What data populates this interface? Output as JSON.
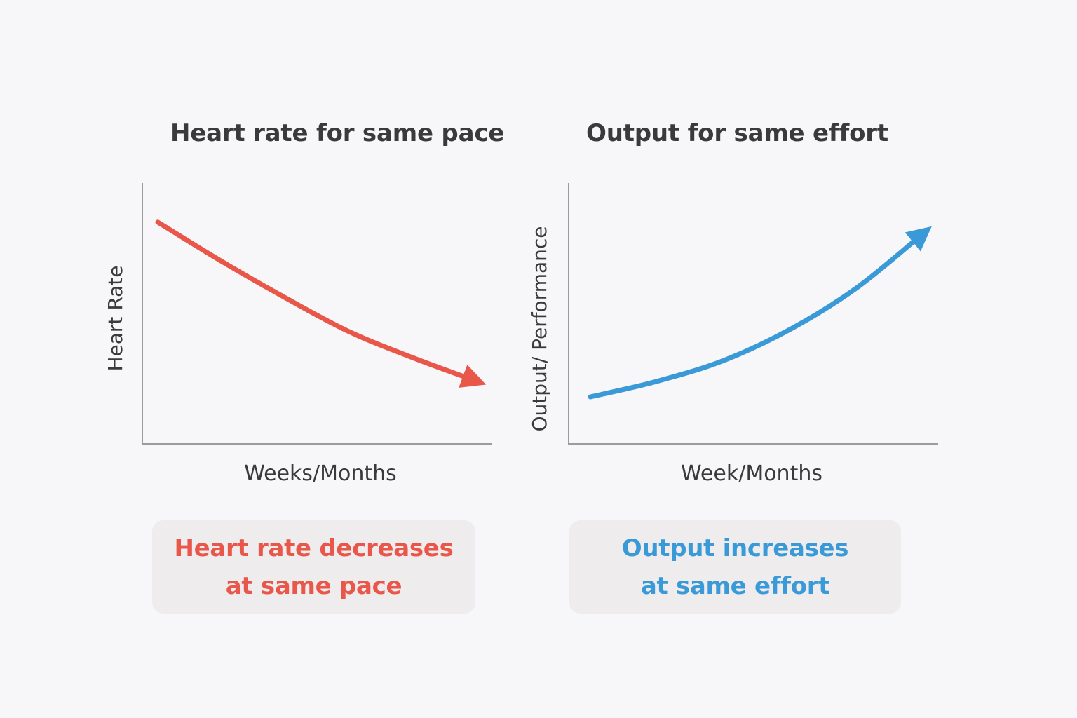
{
  "colors": {
    "background": "#f7f6f8",
    "decrease": "#e8574a",
    "increase": "#3a9ad8",
    "axis": "#9c9c9e",
    "text": "#3a3a3c",
    "callout_bg": "#efecee"
  },
  "chart_data": [
    {
      "type": "line",
      "title": "Heart rate for same pace",
      "xlabel": "Weeks/Months",
      "ylabel": "Heart Rate",
      "ticks": "none",
      "grid": false,
      "trend": "decreasing",
      "arrow_at_end": true,
      "series": [
        {
          "color": "#e8574a",
          "x": [
            0,
            0.2,
            0.4,
            0.6,
            0.8,
            1.0
          ],
          "y": [
            0.85,
            0.7,
            0.56,
            0.43,
            0.33,
            0.24
          ]
        }
      ],
      "xlim": [
        0,
        1.0
      ],
      "ylim": [
        0,
        1
      ]
    },
    {
      "type": "line",
      "title": "Output for same effort",
      "xlabel": "Week/Months",
      "ylabel": "Output/ Performance",
      "ticks": "none",
      "grid": false,
      "trend": "increasing",
      "arrow_at_end": true,
      "series": [
        {
          "color": "#3a9ad8",
          "x": [
            0,
            0.2,
            0.4,
            0.6,
            0.8,
            1.0
          ],
          "y": [
            0.18,
            0.24,
            0.32,
            0.44,
            0.6,
            0.81
          ]
        }
      ],
      "xlim": [
        0,
        1.0
      ],
      "ylim": [
        0,
        1
      ]
    }
  ],
  "callouts": {
    "left": {
      "line1": "Heart rate decreases",
      "line2": "at same pace"
    },
    "right": {
      "line1": "Output increases",
      "line2": "at same effort"
    }
  }
}
